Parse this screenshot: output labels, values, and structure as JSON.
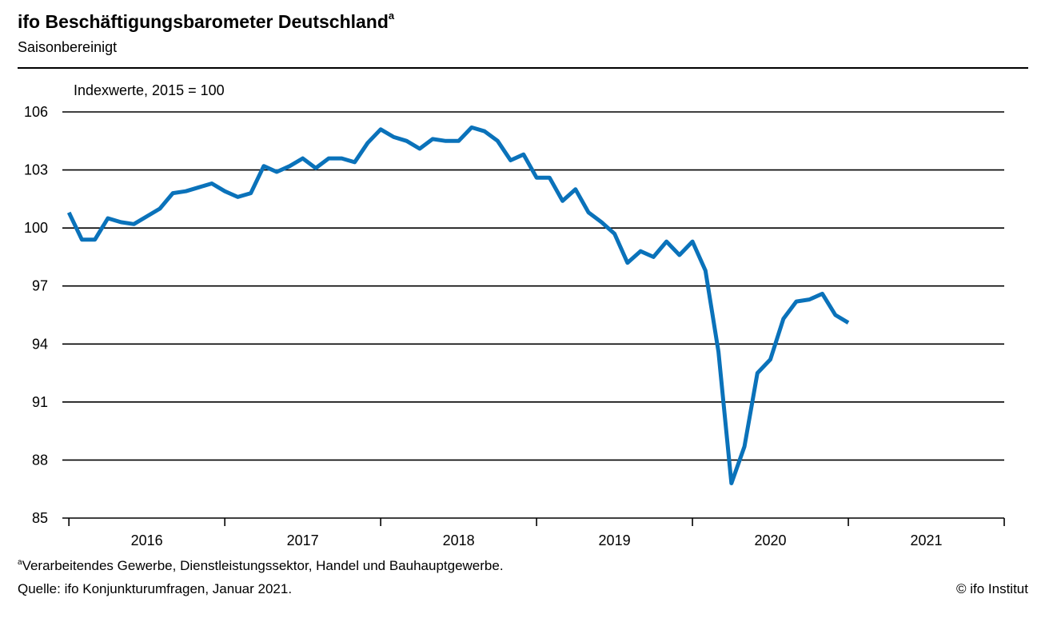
{
  "header": {
    "title": "ifo Beschäftigungsbarometer Deutschland",
    "title_sup": "a",
    "subtitle": "Saisonbereinigt"
  },
  "footer": {
    "footnote_sup": "a",
    "footnote": "Verarbeitendes Gewerbe, Dienstleistungssektor,  Handel und Bauhauptgewerbe.",
    "source": "Quelle: ifo Konjunkturumfragen,  Januar 2021.",
    "copyright": "© ifo Institut"
  },
  "colors": {
    "line": "#0a72ba",
    "grid": "#000000"
  },
  "chart_data": {
    "type": "line",
    "title": "ifo Beschäftigungsbarometer Deutschland",
    "ylabel": "Indexwerte, 2015 = 100",
    "ylim": [
      85,
      106
    ],
    "yticks": [
      106,
      103,
      100,
      97,
      94,
      91,
      88,
      85
    ],
    "xlim": [
      2015.958,
      2022.0
    ],
    "xtick_labels": [
      "2016",
      "2017",
      "2018",
      "2019",
      "2020",
      "2021"
    ],
    "grid": true,
    "series": [
      {
        "name": "ifo Beschäftigungsbarometer",
        "start": "2016-01",
        "values": [
          100.8,
          99.4,
          99.4,
          100.5,
          100.3,
          100.2,
          100.6,
          101.0,
          101.8,
          101.9,
          102.1,
          102.3,
          101.9,
          101.6,
          101.8,
          103.2,
          102.9,
          103.2,
          103.6,
          103.1,
          103.6,
          103.6,
          103.4,
          104.4,
          105.1,
          104.7,
          104.5,
          104.1,
          104.6,
          104.5,
          104.5,
          105.2,
          105.0,
          104.5,
          103.5,
          103.8,
          102.6,
          102.6,
          101.4,
          102.0,
          100.8,
          100.3,
          99.7,
          98.2,
          98.8,
          98.5,
          99.3,
          98.6,
          99.3,
          97.8,
          93.6,
          86.8,
          88.7,
          92.5,
          93.2,
          95.3,
          96.2,
          96.3,
          96.6,
          95.5,
          95.1
        ]
      }
    ]
  }
}
